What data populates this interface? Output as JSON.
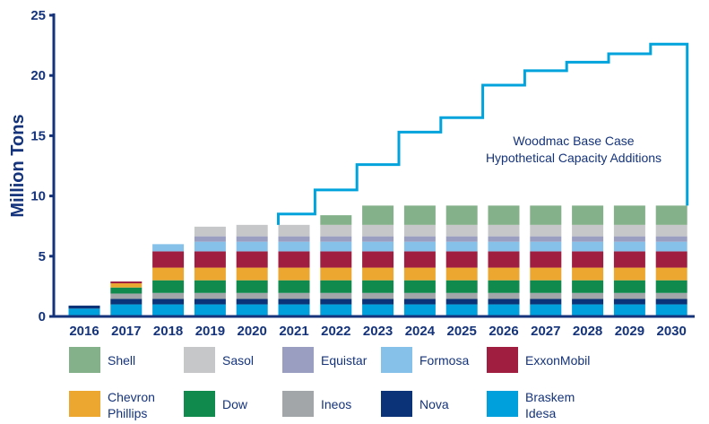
{
  "chart_data": {
    "type": "bar",
    "stacked": true,
    "ylabel": "Million Tons",
    "ylim": [
      0,
      25
    ],
    "yticks": [
      0,
      5,
      10,
      15,
      20,
      25
    ],
    "categories": [
      "2016",
      "2017",
      "2018",
      "2019",
      "2020",
      "2021",
      "2022",
      "2023",
      "2024",
      "2025",
      "2026",
      "2027",
      "2028",
      "2029",
      "2030"
    ],
    "series": [
      {
        "name": "Braskem Idesa",
        "color": "#00a0dc",
        "values": [
          0.65,
          1.0,
          1.0,
          1.0,
          1.0,
          1.0,
          1.0,
          1.0,
          1.0,
          1.0,
          1.0,
          1.0,
          1.0,
          1.0,
          1.0
        ]
      },
      {
        "name": "Nova",
        "color": "#0b3478",
        "values": [
          0.25,
          0.45,
          0.45,
          0.45,
          0.45,
          0.45,
          0.45,
          0.45,
          0.45,
          0.45,
          0.45,
          0.45,
          0.45,
          0.45,
          0.45
        ]
      },
      {
        "name": "Ineos",
        "color": "#a2a6a8",
        "values": [
          0,
          0.45,
          0.5,
          0.5,
          0.5,
          0.5,
          0.5,
          0.5,
          0.5,
          0.5,
          0.5,
          0.5,
          0.5,
          0.5,
          0.5
        ]
      },
      {
        "name": "Dow",
        "color": "#118a4e",
        "values": [
          0,
          0.5,
          1.05,
          1.05,
          1.05,
          1.05,
          1.05,
          1.05,
          1.05,
          1.05,
          1.05,
          1.05,
          1.05,
          1.05,
          1.05
        ]
      },
      {
        "name": "Chevron Phillips",
        "color": "#eba72f",
        "values": [
          0,
          0.35,
          1.05,
          1.05,
          1.05,
          1.05,
          1.05,
          1.05,
          1.05,
          1.05,
          1.05,
          1.05,
          1.05,
          1.05,
          1.05
        ]
      },
      {
        "name": "ExxonMobil",
        "color": "#a01f40",
        "values": [
          0,
          0.15,
          1.35,
          1.35,
          1.35,
          1.35,
          1.35,
          1.35,
          1.35,
          1.35,
          1.35,
          1.35,
          1.35,
          1.35,
          1.35
        ]
      },
      {
        "name": "Formosa",
        "color": "#86c1ea",
        "values": [
          0,
          0,
          0.6,
          0.8,
          0.8,
          0.8,
          0.8,
          0.8,
          0.8,
          0.8,
          0.8,
          0.8,
          0.8,
          0.8,
          0.8
        ]
      },
      {
        "name": "Equistar",
        "color": "#9a9fc2",
        "values": [
          0,
          0,
          0,
          0.45,
          0.45,
          0.45,
          0.45,
          0.45,
          0.45,
          0.45,
          0.45,
          0.45,
          0.45,
          0.45,
          0.45
        ]
      },
      {
        "name": "Sasol",
        "color": "#c6c7c8",
        "values": [
          0,
          0,
          0,
          0.8,
          0.95,
          0.95,
          0.95,
          0.95,
          0.95,
          0.95,
          0.95,
          0.95,
          0.95,
          0.95,
          0.95
        ]
      },
      {
        "name": "Shell",
        "color": "#84b18a",
        "values": [
          0,
          0,
          0,
          0,
          0,
          0,
          0.8,
          1.6,
          1.6,
          1.6,
          1.6,
          1.6,
          1.6,
          1.6,
          1.6
        ]
      }
    ],
    "line": {
      "color": "#00a3dc",
      "label_lines": [
        "Woodmac Base Case",
        "Hypothetical Capacity Additions"
      ],
      "categories": [
        "2021",
        "2022",
        "2023",
        "2024",
        "2025",
        "2026",
        "2027",
        "2028",
        "2029",
        "2030"
      ],
      "values": [
        8.5,
        10.5,
        12.6,
        15.3,
        16.5,
        19.2,
        20.4,
        21.1,
        21.8,
        22.6
      ]
    },
    "legend": {
      "placement": "bottom",
      "rows": [
        [
          {
            "label_lines": [
              "Shell"
            ],
            "series": "Shell"
          },
          {
            "label_lines": [
              "Sasol"
            ],
            "series": "Sasol"
          },
          {
            "label_lines": [
              "Equistar"
            ],
            "series": "Equistar"
          },
          {
            "label_lines": [
              "Formosa"
            ],
            "series": "Formosa"
          },
          {
            "label_lines": [
              "ExxonMobil"
            ],
            "series": "ExxonMobil"
          }
        ],
        [
          {
            "label_lines": [
              "Chevron",
              "Phillips"
            ],
            "series": "Chevron Phillips"
          },
          {
            "label_lines": [
              "Dow"
            ],
            "series": "Dow"
          },
          {
            "label_lines": [
              "Ineos"
            ],
            "series": "Ineos"
          },
          {
            "label_lines": [
              "Nova"
            ],
            "series": "Nova"
          },
          {
            "label_lines": [
              "Braskem",
              "Idesa"
            ],
            "series": "Braskem Idesa"
          }
        ]
      ]
    },
    "axis_color": "#14337a",
    "grid": false
  }
}
